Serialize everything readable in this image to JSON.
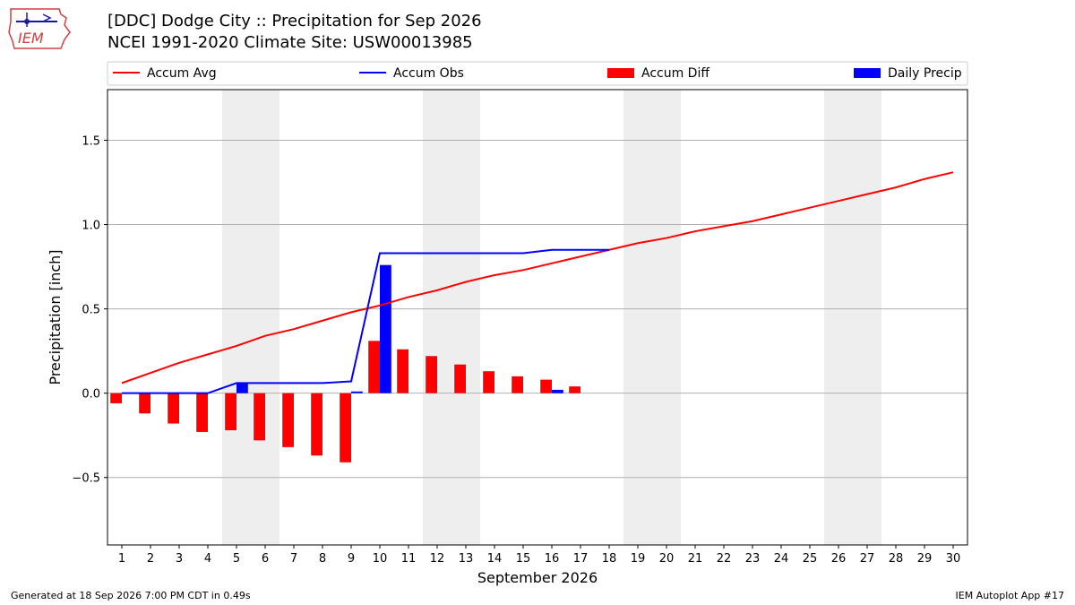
{
  "header": {
    "title_line1": "[DDC] Dodge City :: Precipitation for Sep 2026",
    "title_line2": "NCEI 1991-2020 Climate Site: USW00013985",
    "logo_text": "IEM"
  },
  "footer": {
    "generated": "Generated at 18 Sep 2026 7:00 PM CDT in 0.49s",
    "app": "IEM Autoplot App #17"
  },
  "colors": {
    "avg": "#ff0000",
    "obs": "#0000ff",
    "diff": "#ff0000",
    "daily": "#0000ff",
    "weekend": "#eeeeee",
    "grid": "#b0b0b0"
  },
  "chart_data": {
    "type": "bar",
    "xlabel": "September 2026",
    "ylabel": "Precipitation [inch]",
    "ylim": [
      -0.9,
      1.8
    ],
    "yticks": [
      -0.5,
      0.0,
      0.5,
      1.0,
      1.5
    ],
    "ytick_labels": [
      "−0.5",
      "0.0",
      "0.5",
      "1.0",
      "1.5"
    ],
    "xlim": [
      0.5,
      30.5
    ],
    "days": [
      1,
      2,
      3,
      4,
      5,
      6,
      7,
      8,
      9,
      10,
      11,
      12,
      13,
      14,
      15,
      16,
      17,
      18,
      19,
      20,
      21,
      22,
      23,
      24,
      25,
      26,
      27,
      28,
      29,
      30
    ],
    "weekend_spans": [
      [
        4.5,
        6.5
      ],
      [
        11.5,
        13.5
      ],
      [
        18.5,
        20.5
      ],
      [
        25.5,
        27.5
      ]
    ],
    "grid": "horizontal",
    "legend": {
      "placement": "top",
      "entries": [
        "Accum Avg",
        "Accum Obs",
        "Accum Diff",
        "Daily Precip"
      ]
    },
    "series": [
      {
        "name": "Accum Avg",
        "kind": "line",
        "x": [
          1,
          2,
          3,
          4,
          5,
          6,
          7,
          8,
          9,
          10,
          11,
          12,
          13,
          14,
          15,
          16,
          17,
          18,
          19,
          20,
          21,
          22,
          23,
          24,
          25,
          26,
          27,
          28,
          29,
          30
        ],
        "values": [
          0.06,
          0.12,
          0.18,
          0.23,
          0.28,
          0.34,
          0.38,
          0.43,
          0.48,
          0.52,
          0.57,
          0.61,
          0.66,
          0.7,
          0.73,
          0.77,
          0.81,
          0.85,
          0.89,
          0.92,
          0.96,
          0.99,
          1.02,
          1.06,
          1.1,
          1.14,
          1.18,
          1.22,
          1.27,
          1.31
        ]
      },
      {
        "name": "Accum Obs",
        "kind": "line",
        "x": [
          1,
          2,
          3,
          4,
          5,
          6,
          7,
          8,
          9,
          10,
          11,
          12,
          13,
          14,
          15,
          16,
          17,
          18
        ],
        "values": [
          0.0,
          0.0,
          0.0,
          0.0,
          0.06,
          0.06,
          0.06,
          0.06,
          0.07,
          0.83,
          0.83,
          0.83,
          0.83,
          0.83,
          0.83,
          0.85,
          0.85,
          0.85
        ]
      },
      {
        "name": "Accum Diff",
        "kind": "bar",
        "x": [
          1,
          2,
          3,
          4,
          5,
          6,
          7,
          8,
          9,
          10,
          11,
          12,
          13,
          14,
          15,
          16,
          17
        ],
        "values": [
          -0.06,
          -0.12,
          -0.18,
          -0.23,
          -0.22,
          -0.28,
          -0.32,
          -0.37,
          -0.41,
          0.31,
          0.26,
          0.22,
          0.17,
          0.13,
          0.1,
          0.08,
          0.04
        ]
      },
      {
        "name": "Daily Precip",
        "kind": "bar",
        "x": [
          5,
          9,
          10,
          16
        ],
        "values": [
          0.06,
          0.01,
          0.76,
          0.02
        ]
      }
    ]
  }
}
